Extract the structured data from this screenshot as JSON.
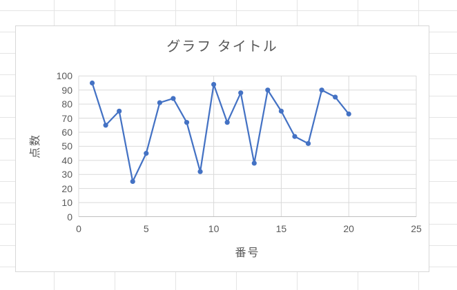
{
  "colors": {
    "series": "#4472C4",
    "gridline": "#d9d9d9",
    "axis_line": "#bfbfbf",
    "text": "#595959",
    "chart_border": "#d7d7d7",
    "sheet_gridline": "#e4e4e4"
  },
  "chart_data": {
    "type": "line",
    "title": "グラフ タイトル",
    "xlabel": "番号",
    "ylabel": "点数",
    "x": [
      1,
      2,
      3,
      4,
      5,
      6,
      7,
      8,
      9,
      10,
      11,
      12,
      13,
      14,
      15,
      16,
      17,
      18,
      19,
      20
    ],
    "y": [
      95,
      65,
      75,
      25,
      45,
      81,
      84,
      67,
      32,
      94,
      67,
      88,
      38,
      90,
      75,
      57,
      52,
      90,
      85,
      73
    ],
    "xlim": [
      0,
      25
    ],
    "ylim": [
      0,
      100
    ],
    "x_ticks": [
      0,
      5,
      10,
      15,
      20,
      25
    ],
    "y_ticks": [
      0,
      10,
      20,
      30,
      40,
      50,
      60,
      70,
      80,
      90,
      100
    ],
    "grid": true,
    "legend": false,
    "marker": "circle",
    "series_color": "#4472C4"
  }
}
